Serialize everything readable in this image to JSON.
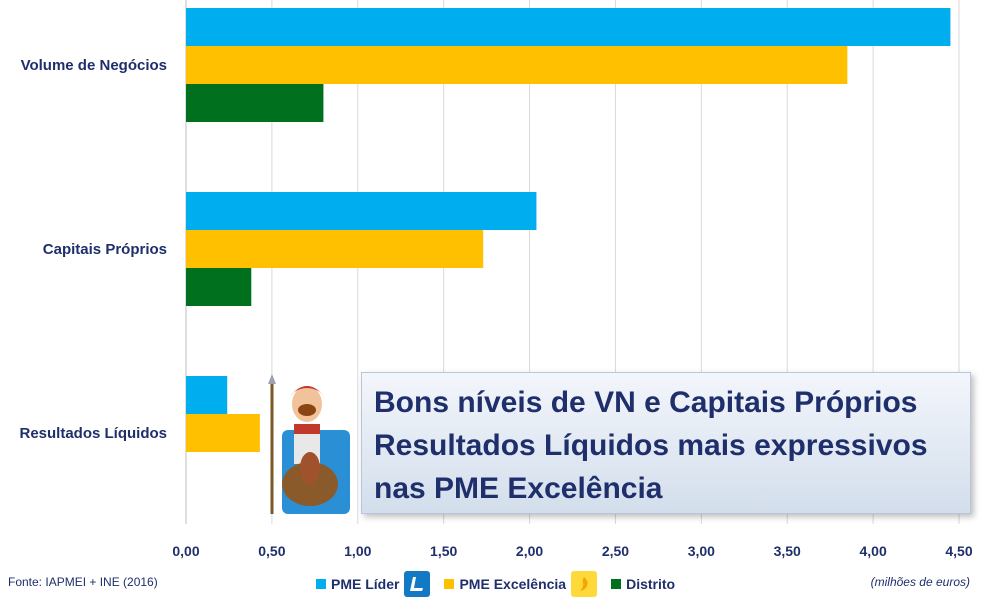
{
  "chart_data": {
    "type": "bar",
    "orientation": "horizontal",
    "categories": [
      "Volume de Negócios",
      "Capitais Próprios",
      "Resultados Líquidos"
    ],
    "series": [
      {
        "name": "PME Líder",
        "color": "#00aeef",
        "values": [
          4.45,
          2.04,
          0.24
        ]
      },
      {
        "name": "PME Excelência",
        "color": "#ffc000",
        "values": [
          3.85,
          1.73,
          0.43
        ]
      },
      {
        "name": "Distrito",
        "color": "#00701f",
        "values": [
          0.8,
          0.38,
          0.0
        ]
      }
    ],
    "xlim": [
      0,
      4.5
    ],
    "xticks": [
      "0,00",
      "0,50",
      "1,00",
      "1,50",
      "2,00",
      "2,50",
      "3,00",
      "3,50",
      "4,00",
      "4,50"
    ],
    "grid": true,
    "legend_position": "bottom"
  },
  "source": "Fonte: IAPMEI + INE (2016)",
  "units": "(milhões de euros)",
  "callout": {
    "lines": [
      "Bons níveis de VN e Capitais Próprios",
      "Resultados Líquidos mais expressivos",
      "nas PME Excelência"
    ]
  },
  "icons": {
    "lider_logo": "pme-lider-logo-icon",
    "excelencia_logo": "pme-excelencia-logo-icon",
    "mascot": "knight-mascot-illustration"
  }
}
